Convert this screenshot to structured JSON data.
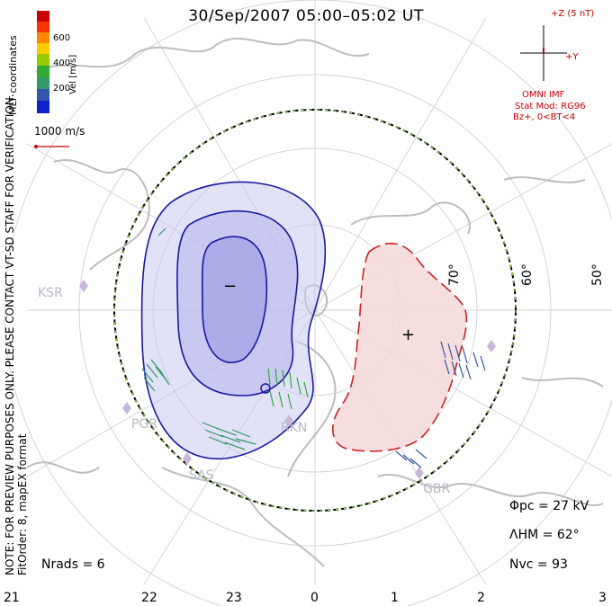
{
  "title": "30/Sep/2007 05:00–05:02 UT",
  "legend": {
    "ticks": [
      "600",
      "400",
      "200"
    ],
    "unit": "Vel [m/s]",
    "colors": [
      "#cc0000",
      "#ff3300",
      "#ff8800",
      "#ffcc00",
      "#99cc00",
      "#33aa33",
      "#339966",
      "#3355aa",
      "#1122cc"
    ]
  },
  "coordinates": "MLT coordinates",
  "vector_scale": "1000 m/s",
  "note_line1": "NOTE: FOR PREVIEW PURPOSES ONLY. PLEASE CONTACT VT-SD STAFF FOR VERIFICATION.",
  "note_line2": "FitOrder: 8, mapEX format",
  "imf": {
    "z_label": "+Z (5 nT)",
    "y_label": "+Y",
    "source": "OMNI IMF",
    "stat_model": "Stat Mod: RG96",
    "condition": "Bz+, 0<BT<4"
  },
  "stats": {
    "phi_pc": "Φpc  =  27 kV",
    "lambda_hm": "ΛHM  =  62°",
    "n_vc": "Nvc  =  93",
    "n_rads": "Nrads  =  6"
  },
  "mlt_labels": [
    "21",
    "22",
    "23",
    "0",
    "1",
    "2",
    "3"
  ],
  "lat_labels": [
    "70°",
    "60°",
    "50°"
  ],
  "radars": [
    "KSR",
    "PGR",
    "SAS",
    "RKN",
    "GBR"
  ],
  "contour_signs": {
    "minus": "−",
    "plus": "+"
  },
  "colors": {
    "coast": "#c8c8c8",
    "grid": "#d0d0d0",
    "neg_fill": "#c8c8f0",
    "pos_fill": "#f4d8d8",
    "neg_line": "#1a1aa0",
    "pos_line": "#cc2222"
  }
}
